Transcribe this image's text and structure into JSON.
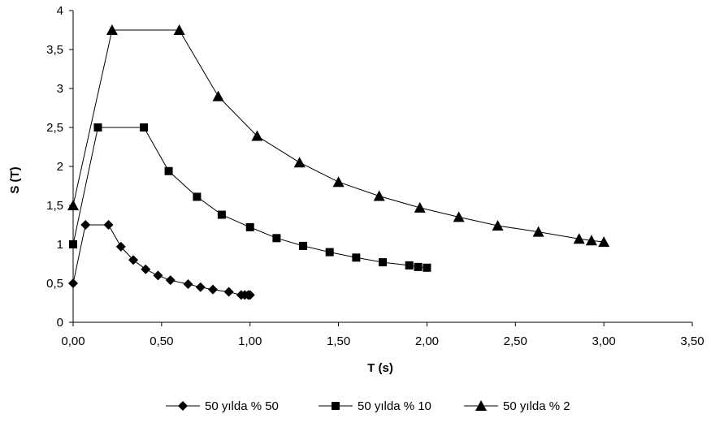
{
  "chart_data": {
    "type": "line",
    "title": "",
    "xlabel": "T (s)",
    "ylabel": "S (T)",
    "xlim": [
      0,
      3.5
    ],
    "ylim": [
      0,
      4
    ],
    "x_ticks": [
      0,
      0.5,
      1,
      1.5,
      2,
      2.5,
      3,
      3.5
    ],
    "x_tick_labels": [
      "0,00",
      "0,50",
      "1,00",
      "1,50",
      "2,00",
      "2,50",
      "3,00",
      "3,50"
    ],
    "y_ticks": [
      0,
      0.5,
      1,
      1.5,
      2,
      2.5,
      3,
      3.5,
      4
    ],
    "y_tick_labels": [
      "0",
      "0,5",
      "1",
      "1,5",
      "2",
      "2,5",
      "3",
      "3,5",
      "4"
    ],
    "grid": false,
    "legend_position": "bottom",
    "line_color": "#000000",
    "series": [
      {
        "name": "50 yılda % 50",
        "marker": "diamond",
        "x": [
          0,
          0.07,
          0.2,
          0.27,
          0.34,
          0.41,
          0.48,
          0.55,
          0.65,
          0.72,
          0.79,
          0.88,
          0.95,
          0.97,
          0.99,
          1.0
        ],
        "y": [
          0.5,
          1.25,
          1.25,
          0.97,
          0.8,
          0.68,
          0.6,
          0.54,
          0.49,
          0.45,
          0.42,
          0.39,
          0.35,
          0.35,
          0.35,
          0.35
        ]
      },
      {
        "name": "50 yılda % 10",
        "marker": "square",
        "x": [
          0,
          0.14,
          0.4,
          0.54,
          0.7,
          0.84,
          1.0,
          1.15,
          1.3,
          1.45,
          1.6,
          1.75,
          1.9,
          1.95,
          2.0
        ],
        "y": [
          1.0,
          2.5,
          2.5,
          1.94,
          1.61,
          1.38,
          1.22,
          1.08,
          0.98,
          0.9,
          0.83,
          0.77,
          0.73,
          0.71,
          0.7
        ]
      },
      {
        "name": "50 yılda % 2",
        "marker": "triangle",
        "x": [
          0,
          0.22,
          0.6,
          0.82,
          1.04,
          1.28,
          1.5,
          1.73,
          1.96,
          2.18,
          2.4,
          2.63,
          2.86,
          2.93,
          3.0
        ],
        "y": [
          1.5,
          3.75,
          3.75,
          2.9,
          2.39,
          2.05,
          1.8,
          1.62,
          1.47,
          1.35,
          1.24,
          1.16,
          1.07,
          1.05,
          1.03
        ]
      }
    ]
  }
}
